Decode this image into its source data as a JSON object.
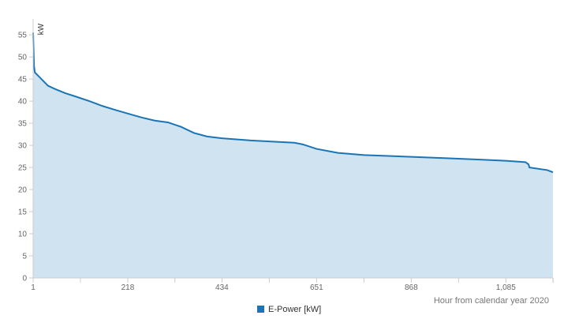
{
  "chart_data": {
    "type": "area",
    "y_label": "kW",
    "x_label": "Hour from calendar year 2020",
    "series": [
      {
        "name": "E-Power [kW]",
        "color": "#1b75b5",
        "x": [
          1,
          3,
          5,
          15,
          25,
          35,
          50,
          75,
          100,
          130,
          160,
          190,
          218,
          250,
          280,
          310,
          340,
          370,
          400,
          434,
          500,
          560,
          600,
          620,
          651,
          700,
          760,
          868,
          950,
          1020,
          1085,
          1130,
          1137,
          1139,
          1180,
          1193
        ],
        "values": [
          55.5,
          48,
          46.5,
          45.5,
          44.5,
          43.5,
          42.8,
          41.8,
          41,
          40,
          38.9,
          38,
          37.2,
          36.3,
          35.6,
          35.2,
          34.2,
          32.8,
          32,
          31.6,
          31.1,
          30.8,
          30.6,
          30.2,
          29.2,
          28.3,
          27.8,
          27.4,
          27.1,
          26.8,
          26.5,
          26.2,
          25.7,
          25,
          24.4,
          23.9
        ]
      }
    ],
    "fill_color": "#d0e3f1",
    "xlim": [
      1,
      1193
    ],
    "xticks": [
      1,
      218,
      434,
      651,
      868,
      {
        "value": 1085,
        "label": "1,085"
      }
    ],
    "ylim": [
      0,
      58.6
    ],
    "yticks": [
      0,
      5,
      10,
      15,
      20,
      25,
      30,
      35,
      40,
      45,
      50,
      55
    ]
  }
}
